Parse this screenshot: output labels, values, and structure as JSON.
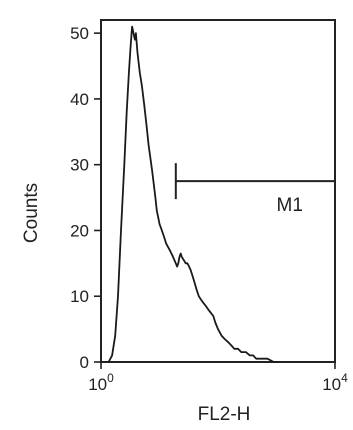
{
  "chart_data": {
    "type": "histogram",
    "title": "",
    "top_text": "",
    "xlabel": "FL2-H",
    "ylabel": "Counts",
    "x_scale": "log",
    "xlim": [
      1,
      10000
    ],
    "ylim": [
      0,
      52
    ],
    "x_ticks": [
      {
        "value": 1,
        "base": "10",
        "exp": "0"
      },
      {
        "value": 10000,
        "base": "10",
        "exp": "4"
      }
    ],
    "y_ticks": [
      0,
      10,
      20,
      30,
      40,
      50
    ],
    "grid": false,
    "legend": "none",
    "series": [
      {
        "x": [
          1.35,
          1.55,
          1.75,
          1.95,
          2.2,
          2.5,
          2.75,
          3.0,
          3.2,
          3.4,
          3.6,
          3.8,
          3.95,
          4.2,
          4.6,
          5.0,
          5.5,
          6.0,
          6.5,
          7.0,
          7.5,
          8.0,
          8.5,
          9.0,
          9.5,
          10,
          11,
          12,
          13,
          14,
          15,
          16,
          17,
          18,
          19,
          20,
          21,
          22,
          23,
          24,
          26,
          28,
          30,
          32,
          34,
          37,
          40,
          43,
          47,
          51,
          56,
          62,
          68,
          75,
          83,
          90,
          100,
          115,
          130,
          150,
          170,
          190,
          220,
          250,
          300,
          350,
          400,
          450,
          550,
          700,
          900,
          1100
        ],
        "y": [
          0,
          1,
          4,
          10,
          20,
          30,
          38,
          44,
          48,
          51,
          50,
          49,
          50,
          47,
          44,
          42,
          39,
          36,
          33,
          31,
          29,
          27,
          25,
          23,
          22,
          21,
          20,
          19,
          18,
          17.5,
          17,
          16.5,
          16,
          15.5,
          15,
          14.5,
          15,
          16,
          16.5,
          16,
          15.5,
          15,
          15,
          14.5,
          14,
          13,
          12,
          11,
          10,
          9.5,
          9,
          8.5,
          8,
          7.5,
          7,
          6,
          5,
          4,
          3.5,
          3,
          2.5,
          2,
          2,
          1.5,
          1.5,
          1,
          1,
          0.5,
          0.5,
          0.5,
          0,
          0
        ]
      }
    ],
    "gate": {
      "label": "M1",
      "x_start": 19,
      "x_end": 10000,
      "y": 27.5
    }
  }
}
